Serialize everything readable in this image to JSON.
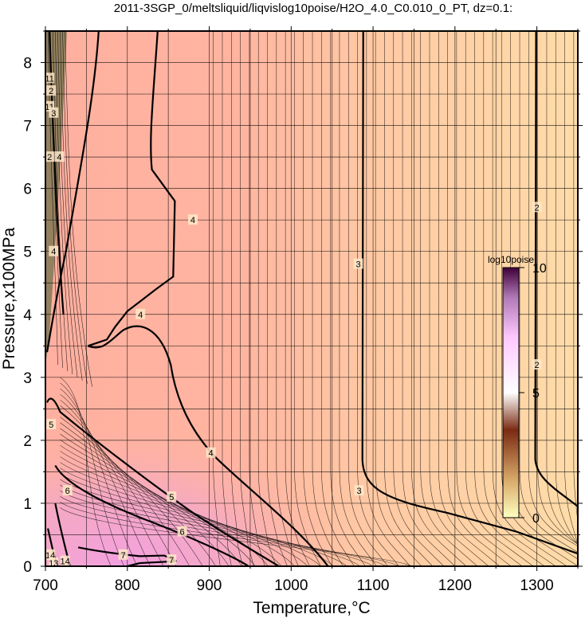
{
  "chart_data": {
    "type": "heatmap",
    "title": "2011-3SGP_0/meltsliquid/liqvislog10poise/H2O_4.0_C0.010_0_PT, dz=0.1:",
    "xlabel": "Temperature,°C",
    "ylabel": "Pressure,x100MPa",
    "xlim": [
      700,
      1350
    ],
    "ylim": [
      0,
      8.5
    ],
    "x_ticks": [
      "700",
      "800",
      "900",
      "1000",
      "1100",
      "1200",
      "1300"
    ],
    "y_ticks": [
      "0",
      "1",
      "2",
      "3",
      "4",
      "5",
      "6",
      "7",
      "8"
    ],
    "grid": true,
    "colorbar": {
      "title": "log10poise",
      "range": [
        0,
        10
      ],
      "ticks": [
        "0",
        "5",
        "10"
      ],
      "colors": [
        "#ffffc0",
        "#d9a96a",
        "#7a2a12",
        "#ffffff",
        "#ffc8ff",
        "#b07ab8",
        "#40003a"
      ]
    },
    "field_colors": {
      "low_viscosity": "#ffdca8",
      "mid_viscosity": "#ffb6a0",
      "high_viscosity": "#f59ee0"
    },
    "contour_labels": [
      {
        "value": "4",
        "x": 717,
        "y": 6.5
      },
      {
        "value": "4",
        "x": 710,
        "y": 5.0
      },
      {
        "value": "4",
        "x": 816,
        "y": 4.0
      },
      {
        "value": "4",
        "x": 880,
        "y": 5.5
      },
      {
        "value": "4",
        "x": 902,
        "y": 1.8
      },
      {
        "value": "3",
        "x": 1082,
        "y": 4.8
      },
      {
        "value": "3",
        "x": 1083,
        "y": 1.2
      },
      {
        "value": "2",
        "x": 1300,
        "y": 5.7
      },
      {
        "value": "2",
        "x": 1300,
        "y": 3.2
      },
      {
        "value": "5",
        "x": 707,
        "y": 2.25
      },
      {
        "value": "5",
        "x": 854,
        "y": 1.1
      },
      {
        "value": "6",
        "x": 727,
        "y": 1.2
      },
      {
        "value": "6",
        "x": 867,
        "y": 0.55
      },
      {
        "value": "7",
        "x": 795,
        "y": 0.18
      },
      {
        "value": "7",
        "x": 854,
        "y": 0.1
      },
      {
        "value": "11",
        "x": 705,
        "y": 7.75
      },
      {
        "value": "11",
        "x": 705,
        "y": 7.3
      },
      {
        "value": "2",
        "x": 707,
        "y": 7.55
      },
      {
        "value": "3",
        "x": 710,
        "y": 7.2
      },
      {
        "value": "2",
        "x": 705,
        "y": 6.5
      },
      {
        "value": "14",
        "x": 706,
        "y": 0.18
      },
      {
        "value": "14",
        "x": 724,
        "y": 0.08
      },
      {
        "value": "13",
        "x": 710,
        "y": 0.05
      }
    ]
  }
}
